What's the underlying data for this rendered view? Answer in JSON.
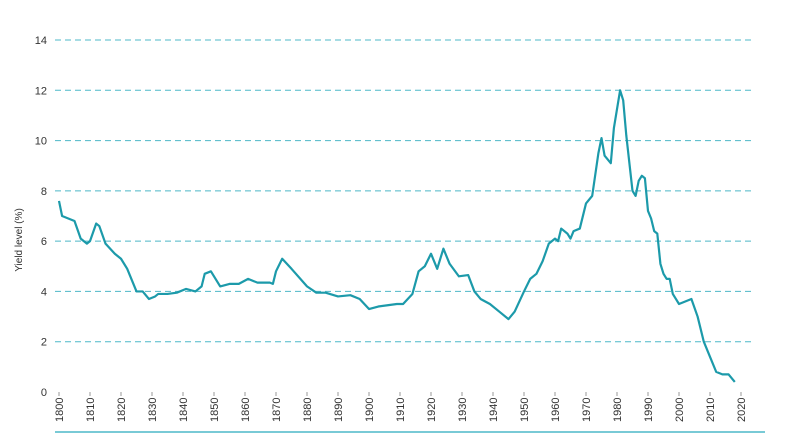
{
  "chart_data": {
    "type": "line",
    "y_label": "Yield level (%)",
    "x": [
      1800,
      1801,
      1803,
      1805,
      1807,
      1809,
      1810,
      1812,
      1813,
      1815,
      1818,
      1820,
      1822,
      1825,
      1827,
      1829,
      1831,
      1832,
      1835,
      1838,
      1841,
      1844,
      1846,
      1847,
      1849,
      1852,
      1855,
      1858,
      1861,
      1864,
      1868,
      1869,
      1870,
      1872,
      1875,
      1880,
      1883,
      1886,
      1890,
      1894,
      1897,
      1900,
      1903,
      1906,
      1909,
      1911,
      1914,
      1916,
      1918,
      1920,
      1922,
      1924,
      1926,
      1929,
      1932,
      1934,
      1936,
      1939,
      1942,
      1945,
      1947,
      1950,
      1952,
      1954,
      1956,
      1958,
      1960,
      1961,
      1962,
      1964,
      1965,
      1966,
      1968,
      1970,
      1972,
      1974,
      1975,
      1976,
      1978,
      1979,
      1981,
      1982,
      1983,
      1985,
      1986,
      1987,
      1988,
      1989,
      1990,
      1991,
      1992,
      1993,
      1994,
      1995,
      1996,
      1997,
      1998,
      1999,
      2000,
      2002,
      2004,
      2006,
      2008,
      2010,
      2012,
      2014,
      2016,
      2018
    ],
    "series": [
      {
        "name": "Yield",
        "color": "#1c9aaa",
        "values": [
          7.6,
          7.0,
          6.9,
          6.8,
          6.1,
          5.9,
          6.0,
          6.7,
          6.6,
          5.9,
          5.5,
          5.3,
          4.9,
          4.0,
          4.0,
          3.7,
          3.8,
          3.9,
          3.9,
          3.95,
          4.1,
          4.0,
          4.2,
          4.7,
          4.8,
          4.2,
          4.3,
          4.3,
          4.5,
          4.35,
          4.35,
          4.3,
          4.8,
          5.3,
          4.9,
          4.2,
          3.95,
          3.95,
          3.8,
          3.85,
          3.7,
          3.3,
          3.4,
          3.45,
          3.5,
          3.5,
          3.9,
          4.8,
          5.0,
          5.5,
          4.9,
          5.7,
          5.1,
          4.6,
          4.65,
          4.0,
          3.7,
          3.5,
          3.2,
          2.9,
          3.2,
          4.0,
          4.5,
          4.7,
          5.2,
          5.9,
          6.1,
          6.0,
          6.5,
          6.3,
          6.1,
          6.4,
          6.5,
          7.5,
          7.8,
          9.5,
          10.1,
          9.4,
          9.1,
          10.5,
          12.0,
          11.6,
          10.2,
          8.0,
          7.8,
          8.4,
          8.6,
          8.5,
          7.2,
          6.9,
          6.4,
          6.3,
          5.1,
          4.7,
          4.5,
          4.5,
          3.9,
          3.7,
          3.5,
          3.6,
          3.7,
          3.0,
          2.0,
          1.4,
          0.8,
          0.7,
          0.7,
          0.4
        ]
      }
    ],
    "xlim": [
      1800,
      2020
    ],
    "xticks": [
      1800,
      1810,
      1820,
      1830,
      1840,
      1850,
      1860,
      1870,
      1880,
      1890,
      1900,
      1910,
      1920,
      1930,
      1940,
      1950,
      1960,
      1970,
      1980,
      1990,
      2000,
      2010,
      2020
    ],
    "ylim": [
      0,
      14
    ],
    "yticks": [
      0,
      2,
      4,
      6,
      8,
      10,
      12,
      14
    ],
    "grid": true,
    "grid_color": "#4db8c8"
  }
}
